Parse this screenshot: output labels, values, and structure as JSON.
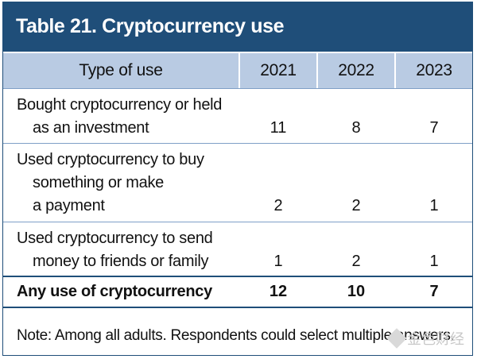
{
  "title": "Table 21. Cryptocurrency use",
  "columns": [
    "Type of use",
    "2021",
    "2022",
    "2023"
  ],
  "rows": [
    {
      "label_lines": [
        "Bought cryptocurrency or held",
        "as an investment"
      ],
      "values": [
        "11",
        "8",
        "7"
      ]
    },
    {
      "label_lines": [
        "Used cryptocurrency to buy",
        "something or make",
        "a payment"
      ],
      "values": [
        "2",
        "2",
        "1"
      ]
    },
    {
      "label_lines": [
        "Used cryptocurrency to send",
        "money to friends or family"
      ],
      "values": [
        "1",
        "2",
        "1"
      ]
    }
  ],
  "total": {
    "label": "Any use of cryptocurrency",
    "values": [
      "12",
      "10",
      "7"
    ]
  },
  "note": "Note: Among all adults. Respondents could select multiple answers.",
  "watermark": "金色财经",
  "colors": {
    "title_bg": "#1f4e79",
    "header_bg": "#b9cbe3",
    "rule": "#7f9fc7"
  }
}
